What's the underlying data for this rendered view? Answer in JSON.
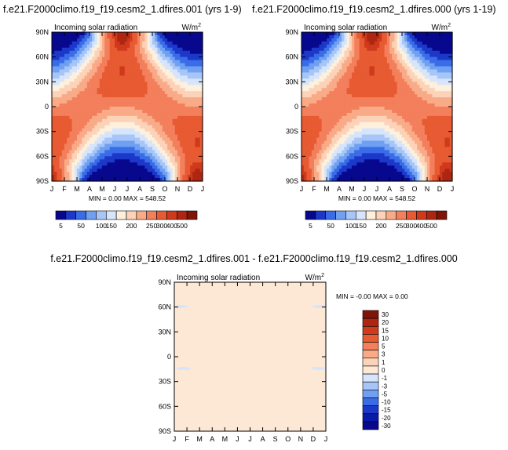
{
  "chart_data": [
    {
      "type": "heatmap",
      "title": "f.e21.F2000climo.f19_f19.cesm2_1.dfires.001 (yrs 1-9)",
      "subtitle": "Incoming solar radiation",
      "units": "W/m",
      "units_sup": "2",
      "x_ticks": [
        "J",
        "F",
        "M",
        "A",
        "M",
        "J",
        "J",
        "A",
        "S",
        "O",
        "N",
        "D",
        "J"
      ],
      "y_ticks": [
        "90N",
        "60N",
        "30N",
        "0",
        "30S",
        "60S",
        "90S"
      ],
      "stats": "MIN =   0.00 MAX = 548.52",
      "colorbar_labels": [
        "5",
        "50",
        "100",
        "150",
        "200",
        "250",
        "300",
        "400",
        "500"
      ],
      "colors": [
        "#08088f",
        "#1c38c8",
        "#3a6ce8",
        "#6fa0f2",
        "#a7c6f7",
        "#d6e5fb",
        "#fdf0dc",
        "#fcd2b8",
        "#f9ab88",
        "#f37f5c",
        "#e75a32",
        "#d03a1c",
        "#ae2612",
        "#7f1509"
      ]
    },
    {
      "type": "heatmap",
      "title": "f.e21.F2000climo.f19_f19.cesm2_1.dfires.000 (yrs 1-19)",
      "subtitle": "Incoming solar radiation",
      "units": "W/m",
      "units_sup": "2",
      "x_ticks": [
        "J",
        "F",
        "M",
        "A",
        "M",
        "J",
        "J",
        "A",
        "S",
        "O",
        "N",
        "D",
        "J"
      ],
      "y_ticks": [
        "90N",
        "60N",
        "30N",
        "0",
        "30S",
        "60S",
        "90S"
      ],
      "stats": "MIN =   0.00 MAX = 548.52",
      "colorbar_labels": [
        "5",
        "50",
        "100",
        "150",
        "200",
        "250",
        "300",
        "400",
        "500"
      ]
    },
    {
      "type": "heatmap",
      "title": "f.e21.F2000climo.f19_f19.cesm2_1.dfires.001 - f.e21.F2000climo.f19_f19.cesm2_1.dfires.000",
      "subtitle": "Incoming solar radiation",
      "units": "W/m",
      "units_sup": "2",
      "x_ticks": [
        "J",
        "F",
        "M",
        "A",
        "M",
        "J",
        "J",
        "A",
        "S",
        "O",
        "N",
        "D",
        "J"
      ],
      "y_ticks": [
        "90N",
        "60N",
        "30N",
        "0",
        "30S",
        "60S",
        "90S"
      ],
      "stats": "MIN =  -0.00 MAX =   0.00",
      "colorbar_labels": [
        "30",
        "20",
        "15",
        "10",
        "5",
        "3",
        "1",
        "0",
        "-1",
        "-3",
        "-5",
        "-10",
        "-15",
        "-20",
        "-30"
      ],
      "colors": [
        "#7f1509",
        "#ae2612",
        "#d03a1c",
        "#e75a32",
        "#f37f5c",
        "#f9ab88",
        "#fcd2b8",
        "#fde8d6",
        "#d6e5fb",
        "#a7c6f7",
        "#6fa0f2",
        "#3a6ce8",
        "#1c38c8",
        "#0a1aa8",
        "#08088f"
      ],
      "fill_color": "#fde8d6"
    }
  ]
}
